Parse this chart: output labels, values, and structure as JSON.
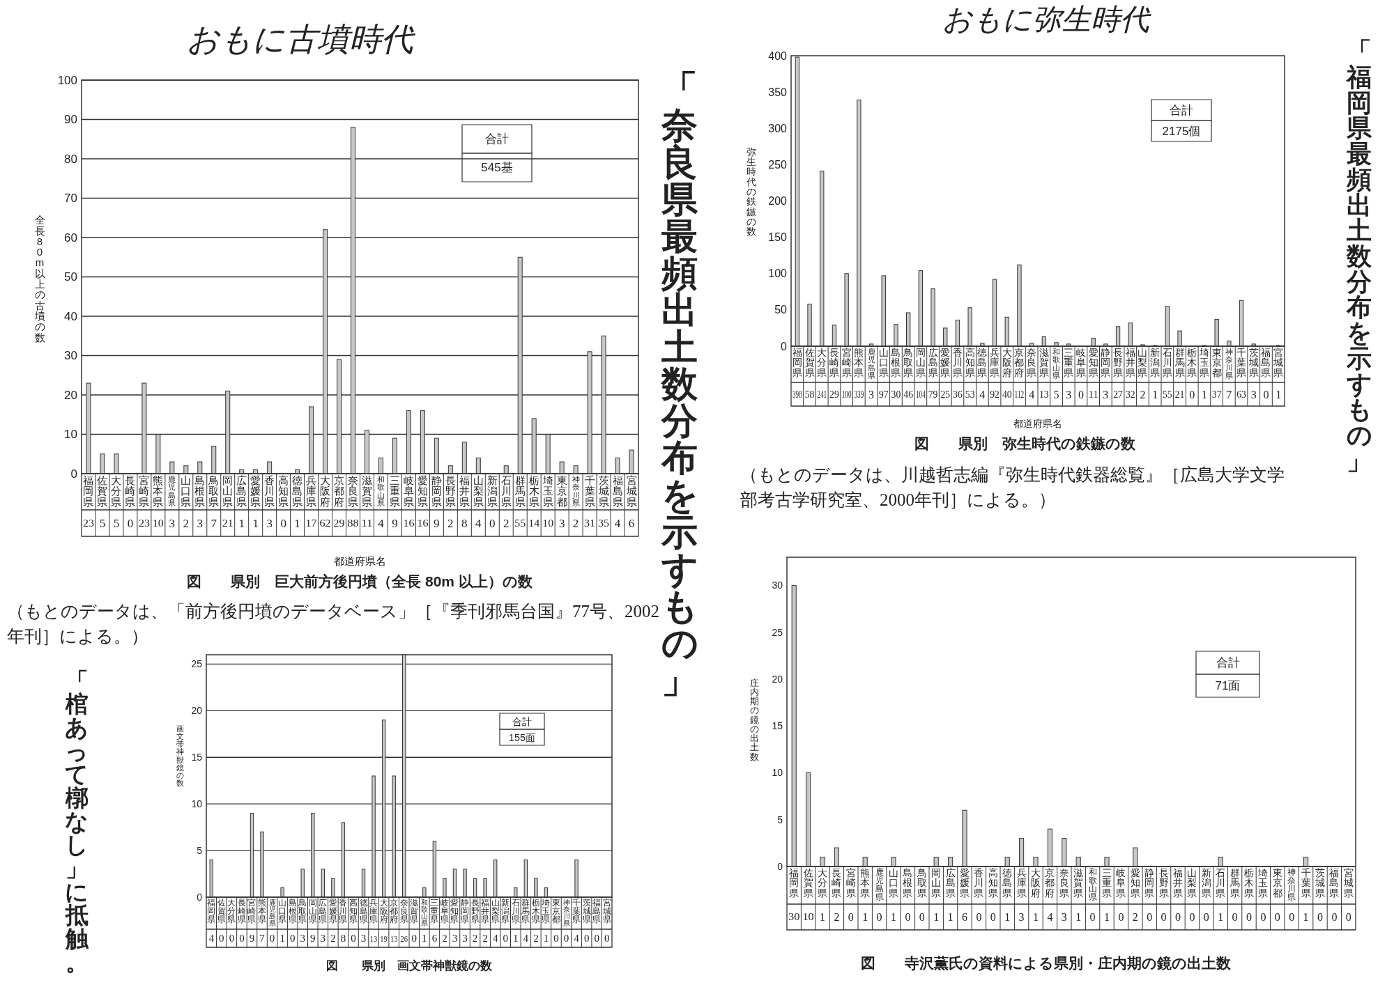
{
  "chart_data": [
    {
      "type": "bar",
      "subtitle": "おもに古墳時代",
      "title": "図　　県別　巨大前方後円墳（全長 80m 以上）の数",
      "xlabel": "都道府県名",
      "ylabel": "全長80m以上の古墳の数",
      "color": "#c8c8c8",
      "ylim": [
        0,
        100
      ],
      "yticks": [
        0,
        10,
        20,
        30,
        40,
        50,
        60,
        70,
        80,
        90,
        100
      ],
      "grid": "y",
      "data_labels": true,
      "categories": [
        "福岡県",
        "佐賀県",
        "大分県",
        "長崎県",
        "宮崎県",
        "熊本県",
        "鹿児島県",
        "山口県",
        "島根県",
        "鳥取県",
        "岡山県",
        "広島県",
        "愛媛県",
        "香川県",
        "高知県",
        "徳島県",
        "兵庫県",
        "大阪府",
        "京都府",
        "奈良県",
        "滋賀県",
        "和歌山県",
        "三重県",
        "岐阜県",
        "愛知県",
        "静岡県",
        "長野県",
        "福井県",
        "山梨県",
        "新潟県",
        "石川県",
        "群馬県",
        "栃木県",
        "埼玉県",
        "東京都",
        "神奈川県",
        "千葉県",
        "茨城県",
        "福島県",
        "宮城県"
      ],
      "values": [
        23,
        5,
        5,
        0,
        23,
        10,
        3,
        2,
        3,
        7,
        21,
        1,
        1,
        3,
        0,
        1,
        17,
        62,
        29,
        88,
        11,
        4,
        9,
        16,
        16,
        9,
        2,
        8,
        4,
        0,
        2,
        55,
        14,
        10,
        3,
        2,
        31,
        35,
        4,
        6
      ],
      "annotations": [
        "合計",
        "545基",
        "（もとのデータは、「前方後円墳のデータベース」［『季刊邪馬台国』77号、2002年刊］による。）",
        "「奈良県最頻出土数分布を示すもの」"
      ]
    },
    {
      "type": "bar",
      "subtitle": "おもに弥生時代",
      "title": "図　　県別　弥生時代の鉄鏃の数",
      "xlabel": "都道府県名",
      "ylabel": "弥生時代の鉄鏃の数",
      "color": "#c8c8c8",
      "ylim": [
        0,
        400
      ],
      "yticks": [
        0,
        50,
        100,
        150,
        200,
        250,
        300,
        350,
        400
      ],
      "data_labels": true,
      "categories": [
        "福岡県",
        "佐賀県",
        "大分県",
        "長崎県",
        "宮崎県",
        "熊本県",
        "鹿児島県",
        "山口県",
        "島根県",
        "鳥取県",
        "岡山県",
        "広島県",
        "愛媛県",
        "香川県",
        "高知県",
        "徳島県",
        "兵庫県",
        "大阪府",
        "京都府",
        "奈良県",
        "滋賀県",
        "和歌山県",
        "三重県",
        "岐阜県",
        "愛知県",
        "静岡県",
        "長野県",
        "福井県",
        "山梨県",
        "新潟県",
        "石川県",
        "群馬県",
        "栃木県",
        "埼玉県",
        "東京都",
        "神奈川県",
        "千葉県",
        "茨城県",
        "福島県",
        "宮城県"
      ],
      "values": [
        398,
        58,
        241,
        29,
        100,
        339,
        3,
        97,
        30,
        46,
        104,
        79,
        25,
        36,
        53,
        4,
        92,
        40,
        112,
        4,
        13,
        5,
        3,
        0,
        11,
        3,
        27,
        32,
        2,
        1,
        55,
        21,
        0,
        1,
        37,
        7,
        63,
        3,
        0,
        1
      ],
      "annotations": [
        "合計",
        "2175個",
        "（もとのデータは、川越哲志編『弥生時代鉄器総覧』［広島大学文学部考古学研究室、2000年刊］による。）",
        "「福岡県最頻出土数分布を示すもの」"
      ]
    },
    {
      "type": "bar",
      "title": "図　　県別　画文帯神獣鏡の数",
      "ylabel": "画文帯神獣鏡の数",
      "color": "#c8c8c8",
      "ylim": [
        0,
        26
      ],
      "yticks": [
        0,
        5,
        10,
        15,
        20,
        25
      ],
      "grid": "y",
      "data_labels": true,
      "categories": [
        "福岡県",
        "佐賀県",
        "大分県",
        "長崎県",
        "宮崎県",
        "熊本県",
        "鹿児島県",
        "山口県",
        "島根県",
        "鳥取県",
        "岡山県",
        "広島県",
        "愛媛県",
        "香川県",
        "高知県",
        "徳島県",
        "兵庫県",
        "大阪府",
        "京都府",
        "奈良県",
        "滋賀県",
        "和歌山県",
        "三重県",
        "岐阜県",
        "愛知県",
        "静岡県",
        "長野県",
        "福井県",
        "山梨県",
        "新潟県",
        "石川県",
        "群馬県",
        "栃木県",
        "埼玉県",
        "東京都",
        "神奈川県",
        "千葉県",
        "茨城県",
        "福島県",
        "宮城県"
      ],
      "values": [
        4,
        0,
        0,
        0,
        9,
        7,
        0,
        1,
        0,
        3,
        9,
        3,
        2,
        8,
        0,
        3,
        13,
        19,
        13,
        26,
        0,
        1,
        6,
        2,
        3,
        3,
        2,
        2,
        4,
        0,
        1,
        4,
        2,
        1,
        0,
        0,
        4,
        0,
        0,
        0
      ],
      "annotations": [
        "合計",
        "155面",
        "「棺あって槨なし」に抵触。"
      ]
    },
    {
      "type": "bar",
      "title": "図　　寺沢薫氏の資料による県別・庄内期の鏡の出土数",
      "ylabel": "庄内期の鏡の出土数",
      "color": "#c8c8c8",
      "ylim": [
        0,
        33
      ],
      "yticks": [
        0,
        5,
        10,
        15,
        20,
        25,
        30
      ],
      "data_labels": true,
      "categories": [
        "福岡県",
        "佐賀県",
        "大分県",
        "長崎県",
        "宮崎県",
        "熊本県",
        "鹿児島県",
        "山口県",
        "島根県",
        "鳥取県",
        "岡山県",
        "広島県",
        "愛媛県",
        "香川県",
        "高知県",
        "徳島県",
        "兵庫県",
        "大阪府",
        "京都府",
        "奈良県",
        "滋賀県",
        "和歌山県",
        "三重県",
        "岐阜県",
        "愛知県",
        "静岡県",
        "長野県",
        "福井県",
        "山梨県",
        "新潟県",
        "石川県",
        "群馬県",
        "栃木県",
        "埼玉県",
        "東京都",
        "神奈川県",
        "千葉県",
        "茨城県",
        "福島県",
        "宮城県"
      ],
      "values": [
        30,
        10,
        1,
        2,
        0,
        1,
        0,
        1,
        0,
        0,
        1,
        1,
        6,
        0,
        0,
        1,
        3,
        1,
        4,
        3,
        1,
        0,
        1,
        0,
        2,
        0,
        0,
        0,
        0,
        0,
        1,
        0,
        0,
        0,
        0,
        0,
        1,
        0,
        0,
        0
      ],
      "annotations": [
        "合計",
        "71面"
      ]
    }
  ]
}
